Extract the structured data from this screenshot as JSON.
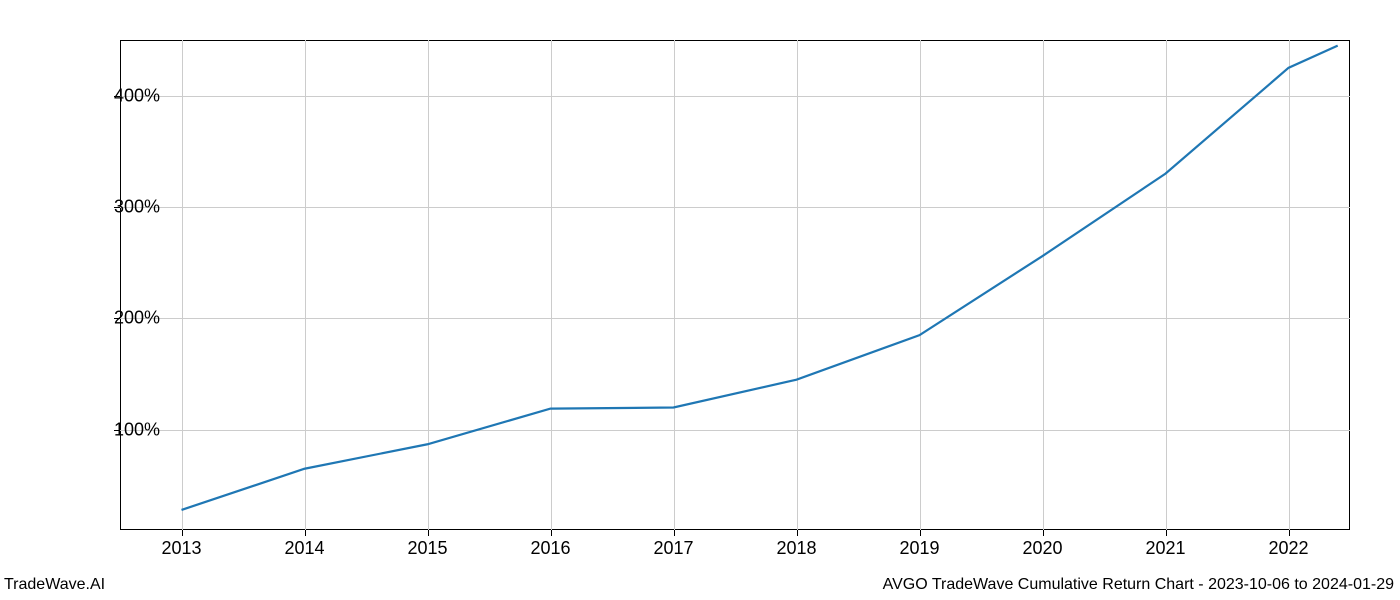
{
  "chart": {
    "type": "line",
    "background_color": "#ffffff",
    "grid_color": "#cccccc",
    "axis_color": "#000000",
    "line_color": "#1f77b4",
    "line_width": 2.2,
    "tick_fontsize": 18,
    "footer_fontsize": 16,
    "x": {
      "ticks": [
        2013,
        2014,
        2015,
        2016,
        2017,
        2018,
        2019,
        2020,
        2021,
        2022
      ],
      "labels": [
        "2013",
        "2014",
        "2015",
        "2016",
        "2017",
        "2018",
        "2019",
        "2020",
        "2021",
        "2022"
      ],
      "min": 2012.5,
      "max": 2022.5
    },
    "y": {
      "ticks": [
        100,
        200,
        300,
        400
      ],
      "labels": [
        "100%",
        "200%",
        "300%",
        "400%"
      ],
      "min": 10,
      "max": 450
    },
    "series": {
      "x_values": [
        2013,
        2014,
        2015,
        2016,
        2017,
        2018,
        2019,
        2020,
        2021,
        2022,
        2022.4
      ],
      "y_values": [
        28,
        65,
        87,
        119,
        120,
        145,
        185,
        256,
        330,
        425,
        445
      ]
    }
  },
  "footer": {
    "left": "TradeWave.AI",
    "right": "AVGO TradeWave Cumulative Return Chart - 2023-10-06 to 2024-01-29"
  }
}
